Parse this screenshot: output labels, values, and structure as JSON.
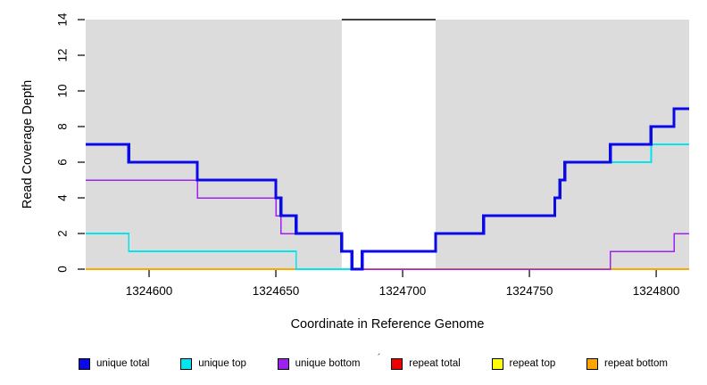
{
  "chart_data": {
    "type": "step",
    "title": "",
    "xlabel": "Coordinate in Reference Genome",
    "ylabel": "Read Coverage Depth",
    "xlim": [
      1324575,
      1324813
    ],
    "ylim": [
      0,
      14
    ],
    "xticks": [
      1324600,
      1324650,
      1324700,
      1324750,
      1324800
    ],
    "yticks": [
      0,
      2,
      4,
      6,
      8,
      10,
      12,
      14
    ],
    "grid": false,
    "panel_bg": "#DCDCDC",
    "page_bg": "#FFFFFF",
    "highlight_band": {
      "start": 1324676,
      "end": 1324713,
      "fill": "#FFFFFF",
      "top_marker": true,
      "top_marker_y": 14,
      "top_marker_color": "#000000"
    },
    "series": [
      {
        "name": "repeat total",
        "color": "#EE0000",
        "width": 1.4,
        "points": [
          {
            "x": 1324575,
            "y": 0
          }
        ]
      },
      {
        "name": "repeat top",
        "color": "#FFFF00",
        "width": 1.4,
        "points": [
          {
            "x": 1324575,
            "y": 0
          }
        ]
      },
      {
        "name": "repeat bottom",
        "color": "#FFA500",
        "width": 1.8,
        "points": [
          {
            "x": 1324575,
            "y": 0
          }
        ]
      },
      {
        "name": "unique bottom",
        "color": "#A020F0",
        "width": 1.5,
        "points": [
          {
            "x": 1324575,
            "y": 5
          },
          {
            "x": 1324619,
            "y": 4
          },
          {
            "x": 1324650,
            "y": 3
          },
          {
            "x": 1324652,
            "y": 2
          },
          {
            "x": 1324676,
            "y": 1
          },
          {
            "x": 1324680,
            "y": 0
          },
          {
            "x": 1324782,
            "y": 1
          },
          {
            "x": 1324807,
            "y": 2
          }
        ]
      },
      {
        "name": "unique top",
        "color": "#00E5EE",
        "width": 1.8,
        "points": [
          {
            "x": 1324575,
            "y": 2
          },
          {
            "x": 1324592,
            "y": 1
          },
          {
            "x": 1324658,
            "y": 0
          },
          {
            "x": 1324684,
            "y": 1
          },
          {
            "x": 1324713,
            "y": 2
          },
          {
            "x": 1324732,
            "y": 3
          },
          {
            "x": 1324760,
            "y": 4
          },
          {
            "x": 1324762,
            "y": 5
          },
          {
            "x": 1324764,
            "y": 6
          },
          {
            "x": 1324798,
            "y": 7
          }
        ]
      },
      {
        "name": "unique total",
        "color": "#0A0AE6",
        "width": 3.4,
        "points": [
          {
            "x": 1324575,
            "y": 7
          },
          {
            "x": 1324592,
            "y": 6
          },
          {
            "x": 1324619,
            "y": 5
          },
          {
            "x": 1324650,
            "y": 4
          },
          {
            "x": 1324652,
            "y": 3
          },
          {
            "x": 1324658,
            "y": 2
          },
          {
            "x": 1324676,
            "y": 1
          },
          {
            "x": 1324680,
            "y": 0
          },
          {
            "x": 1324684,
            "y": 1
          },
          {
            "x": 1324713,
            "y": 2
          },
          {
            "x": 1324732,
            "y": 3
          },
          {
            "x": 1324760,
            "y": 4
          },
          {
            "x": 1324762,
            "y": 5
          },
          {
            "x": 1324764,
            "y": 6
          },
          {
            "x": 1324782,
            "y": 7
          },
          {
            "x": 1324798,
            "y": 8
          },
          {
            "x": 1324807,
            "y": 9
          }
        ]
      }
    ],
    "legend": [
      {
        "label": "unique total",
        "color": "#0A0AE6"
      },
      {
        "label": "unique top",
        "color": "#00E5EE"
      },
      {
        "label": "unique bottom",
        "color": "#A020F0"
      },
      {
        "label": "repeat total",
        "color": "#EE0000"
      },
      {
        "label": "repeat top",
        "color": "#FFFF00"
      },
      {
        "label": "repeat bottom",
        "color": "#FFA500"
      }
    ],
    "legend_position": "bottom"
  },
  "decorations": {
    "stray_mark": "´"
  }
}
